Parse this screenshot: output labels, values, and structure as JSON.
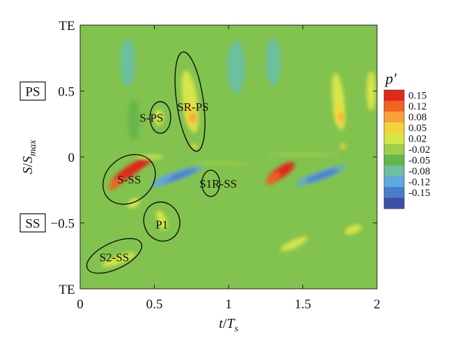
{
  "chart_data": {
    "type": "heatmap",
    "xlabel": "t/T_s",
    "xlabel_main": "t",
    "xlabel_sep": "/",
    "xlabel_var": "T",
    "xlabel_sub": "s",
    "ylabel_main": "S",
    "ylabel_sep": "/",
    "ylabel_var": "S",
    "ylabel_sub": "max",
    "xlim": [
      0,
      2
    ],
    "ylim": [
      -1,
      1
    ],
    "x_ticks": [
      0,
      0.5,
      1,
      1.5,
      2
    ],
    "x_tick_labels": [
      "0",
      "0.5",
      "1",
      "1.5",
      "2"
    ],
    "y_ticks": [
      0.5,
      0,
      -0.5
    ],
    "y_tick_labels": [
      "0.5",
      "0",
      "−0.5"
    ],
    "y_edge_labels": [
      {
        "y": 1,
        "text": "TE"
      },
      {
        "y": -1,
        "text": "TE"
      }
    ],
    "side_boxes": [
      {
        "y": 0.5,
        "text": "PS"
      },
      {
        "y": -0.5,
        "text": "SS"
      }
    ],
    "colorbar": {
      "title": "p′",
      "levels": [
        "0.15",
        "0.12",
        "0.08",
        "0.05",
        "0.02",
        "-0.02",
        "-0.05",
        "-0.08",
        "-0.12",
        "-0.15"
      ],
      "colors": [
        "#e0281c",
        "#f26222",
        "#f7a13b",
        "#f4d33a",
        "#d8e54a",
        "#9ccf4c",
        "#67b64a",
        "#6cc0a0",
        "#5ea9dd",
        "#4a7cca",
        "#3d4fa8"
      ]
    },
    "background_color": "#82c24e",
    "features": [
      {
        "label": "SR-PS",
        "cx": 0.74,
        "cy": 0.42,
        "rx": 0.09,
        "ry": 0.38,
        "rot": -8,
        "lx": 0.76,
        "ly": 0.38
      },
      {
        "label": "S-PS",
        "cx": 0.54,
        "cy": 0.3,
        "rx": 0.07,
        "ry": 0.12,
        "rot": 0,
        "lx": 0.48,
        "ly": 0.3
      },
      {
        "label": "S-SS",
        "cx": 0.33,
        "cy": -0.17,
        "rx": 0.19,
        "ry": 0.17,
        "rot": -38,
        "lx": 0.33,
        "ly": -0.17
      },
      {
        "label": "S1R-SS",
        "cx": 0.88,
        "cy": -0.2,
        "rx": 0.06,
        "ry": 0.1,
        "rot": 0,
        "lx": 0.93,
        "ly": -0.2
      },
      {
        "label": "P1",
        "cx": 0.55,
        "cy": -0.49,
        "rx": 0.12,
        "ry": 0.15,
        "rot": -20,
        "lx": 0.55,
        "ly": -0.51
      },
      {
        "label": "S2-SS",
        "cx": 0.23,
        "cy": -0.75,
        "rx": 0.2,
        "ry": 0.1,
        "rot": -25,
        "lx": 0.23,
        "ly": -0.76
      }
    ],
    "blobs": [
      {
        "x": 0.33,
        "y": -0.11,
        "rx": 0.13,
        "ry": 0.04,
        "rot": -34,
        "color": "#e0281c"
      },
      {
        "x": 0.42,
        "y": -0.05,
        "rx": 0.06,
        "ry": 0.02,
        "rot": -20,
        "color": "#e0281c"
      },
      {
        "x": 0.24,
        "y": -0.2,
        "rx": 0.06,
        "ry": 0.03,
        "rot": -40,
        "color": "#f26222"
      },
      {
        "x": 0.47,
        "y": 0.0,
        "rx": 0.09,
        "ry": 0.015,
        "rot": 0,
        "color": "#d8e54a"
      },
      {
        "x": 0.66,
        "y": -0.14,
        "rx": 0.18,
        "ry": 0.03,
        "rot": -20,
        "color": "#5ea9dd"
      },
      {
        "x": 0.67,
        "y": -0.14,
        "rx": 0.12,
        "ry": 0.02,
        "rot": -20,
        "color": "#4a7cca"
      },
      {
        "x": 0.55,
        "y": -0.18,
        "rx": 0.08,
        "ry": 0.02,
        "rot": -30,
        "color": "#5ea9dd"
      },
      {
        "x": 0.74,
        "y": 0.42,
        "rx": 0.05,
        "ry": 0.24,
        "rot": -8,
        "color": "#d8e54a"
      },
      {
        "x": 0.74,
        "y": 0.33,
        "rx": 0.03,
        "ry": 0.1,
        "rot": -8,
        "color": "#f4d33a"
      },
      {
        "x": 0.76,
        "y": 0.3,
        "rx": 0.02,
        "ry": 0.04,
        "rot": 0,
        "color": "#f7a13b"
      },
      {
        "x": 0.77,
        "y": 0.08,
        "rx": 0.02,
        "ry": 0.02,
        "rot": 0,
        "color": "#f4d33a"
      },
      {
        "x": 0.53,
        "y": 0.3,
        "rx": 0.03,
        "ry": 0.06,
        "rot": 0,
        "color": "#d8e54a"
      },
      {
        "x": 0.55,
        "y": -0.48,
        "rx": 0.03,
        "ry": 0.08,
        "rot": -20,
        "color": "#d8e54a"
      },
      {
        "x": 0.36,
        "y": -0.35,
        "rx": 0.05,
        "ry": 0.03,
        "rot": -30,
        "color": "#d8e54a"
      },
      {
        "x": 0.26,
        "y": -0.78,
        "rx": 0.12,
        "ry": 0.03,
        "rot": -20,
        "color": "#d8e54a"
      },
      {
        "x": 0.32,
        "y": 0.72,
        "rx": 0.05,
        "ry": 0.18,
        "rot": 0,
        "color": "#6cc0a0"
      },
      {
        "x": 1.05,
        "y": 0.68,
        "rx": 0.06,
        "ry": 0.2,
        "rot": 0,
        "color": "#6cc0a0"
      },
      {
        "x": 0.36,
        "y": 0.28,
        "rx": 0.04,
        "ry": 0.16,
        "rot": 0,
        "color": "#67b64a"
      },
      {
        "x": 1.36,
        "y": -0.11,
        "rx": 0.1,
        "ry": 0.04,
        "rot": -34,
        "color": "#e0281c"
      },
      {
        "x": 1.3,
        "y": -0.16,
        "rx": 0.06,
        "ry": 0.03,
        "rot": -40,
        "color": "#f26222"
      },
      {
        "x": 1.62,
        "y": -0.14,
        "rx": 0.18,
        "ry": 0.03,
        "rot": -20,
        "color": "#5ea9dd"
      },
      {
        "x": 1.63,
        "y": -0.14,
        "rx": 0.12,
        "ry": 0.02,
        "rot": -20,
        "color": "#4a7cca"
      },
      {
        "x": 1.74,
        "y": 0.42,
        "rx": 0.04,
        "ry": 0.22,
        "rot": -6,
        "color": "#d8e54a"
      },
      {
        "x": 1.74,
        "y": 0.32,
        "rx": 0.025,
        "ry": 0.08,
        "rot": -6,
        "color": "#f4d33a"
      },
      {
        "x": 1.76,
        "y": 0.3,
        "rx": 0.015,
        "ry": 0.03,
        "rot": 0,
        "color": "#f7a13b"
      },
      {
        "x": 1.77,
        "y": 0.08,
        "rx": 0.02,
        "ry": 0.02,
        "rot": 0,
        "color": "#f4d33a"
      },
      {
        "x": 1.44,
        "y": -0.66,
        "rx": 0.1,
        "ry": 0.03,
        "rot": -25,
        "color": "#d8e54a"
      },
      {
        "x": 1.84,
        "y": -0.55,
        "rx": 0.06,
        "ry": 0.03,
        "rot": -20,
        "color": "#d8e54a"
      },
      {
        "x": 1.3,
        "y": 0.72,
        "rx": 0.05,
        "ry": 0.18,
        "rot": 0,
        "color": "#6cc0a0"
      },
      {
        "x": 1.5,
        "y": 0.02,
        "rx": 0.25,
        "ry": 0.012,
        "rot": 0,
        "color": "#9ccf4c"
      },
      {
        "x": 0.95,
        "y": -0.05,
        "rx": 0.2,
        "ry": 0.012,
        "rot": 0,
        "color": "#9ccf4c"
      },
      {
        "x": 1.96,
        "y": 0.5,
        "rx": 0.03,
        "ry": 0.15,
        "rot": 0,
        "color": "#d8e54a"
      }
    ]
  }
}
